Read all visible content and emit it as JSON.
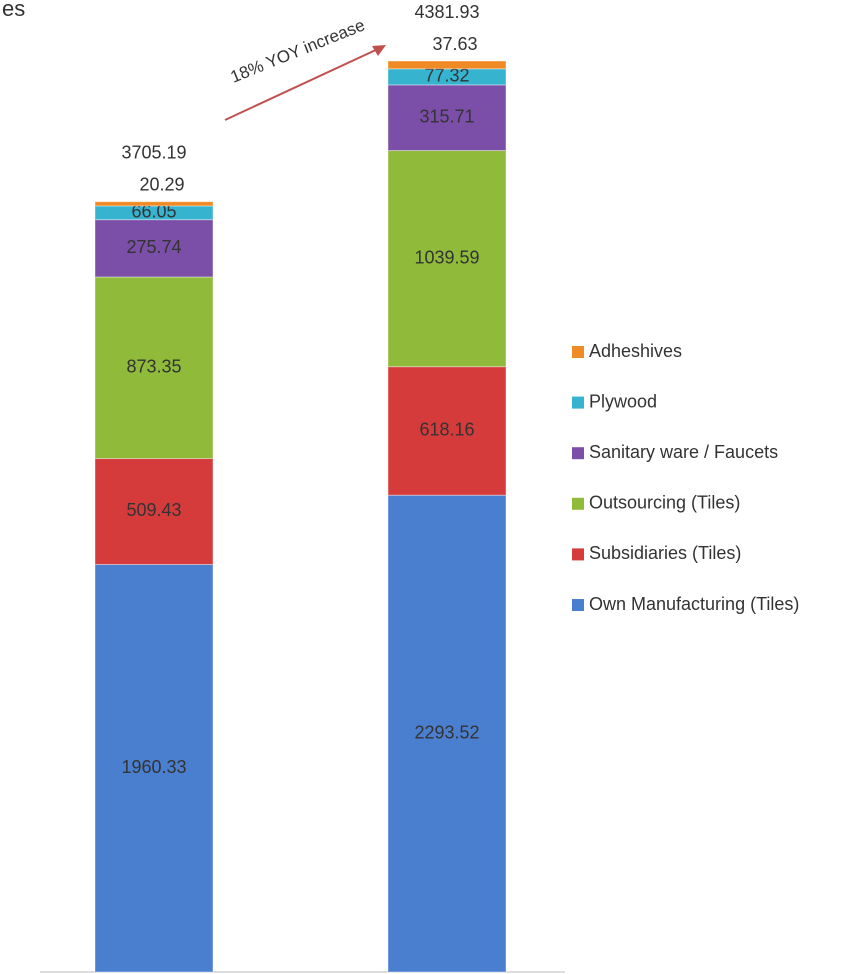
{
  "chart_data": {
    "type": "stacked_bar",
    "title": "es",
    "annotation": "18% YOY increase",
    "categories": [
      null,
      null
    ],
    "series": [
      {
        "name": "Own Manufacturing (Tiles)",
        "color": "#4a7fd0",
        "values": [
          1960.33,
          2293.52
        ]
      },
      {
        "name": "Subsidiaries (Tiles)",
        "color": "#d63b3b",
        "values": [
          509.43,
          618.16
        ]
      },
      {
        "name": "Outsourcing (Tiles)",
        "color": "#8fba3a",
        "values": [
          873.35,
          1039.59
        ]
      },
      {
        "name": "Sanitary ware / Faucets",
        "color": "#7b4fa8",
        "values": [
          275.74,
          315.71
        ]
      },
      {
        "name": "Plywood",
        "color": "#36b3cf",
        "values": [
          66.05,
          77.32
        ]
      },
      {
        "name": "Adheshives",
        "color": "#f08a24",
        "values": [
          20.29,
          37.63
        ]
      }
    ],
    "totals": [
      3705.19,
      4381.93
    ],
    "legend": "right"
  }
}
